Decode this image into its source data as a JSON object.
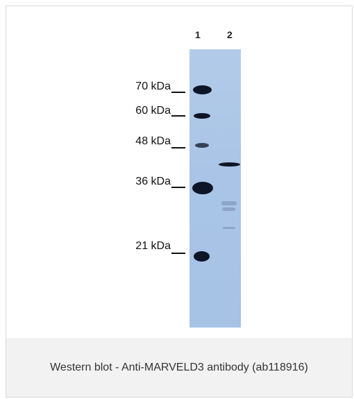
{
  "figure": {
    "lanes": [
      "1",
      "2"
    ],
    "markers": [
      {
        "label": "70 kDa"
      },
      {
        "label": "60 kDa"
      },
      {
        "label": "48 kDa"
      },
      {
        "label": "36 kDa"
      },
      {
        "label": "21 kDa"
      }
    ],
    "membrane_color": "#a9c4e6",
    "band_color": "#0d1526"
  },
  "caption": {
    "text": "Western blot - Anti-MARVELD3 antibody (ab118916)"
  }
}
